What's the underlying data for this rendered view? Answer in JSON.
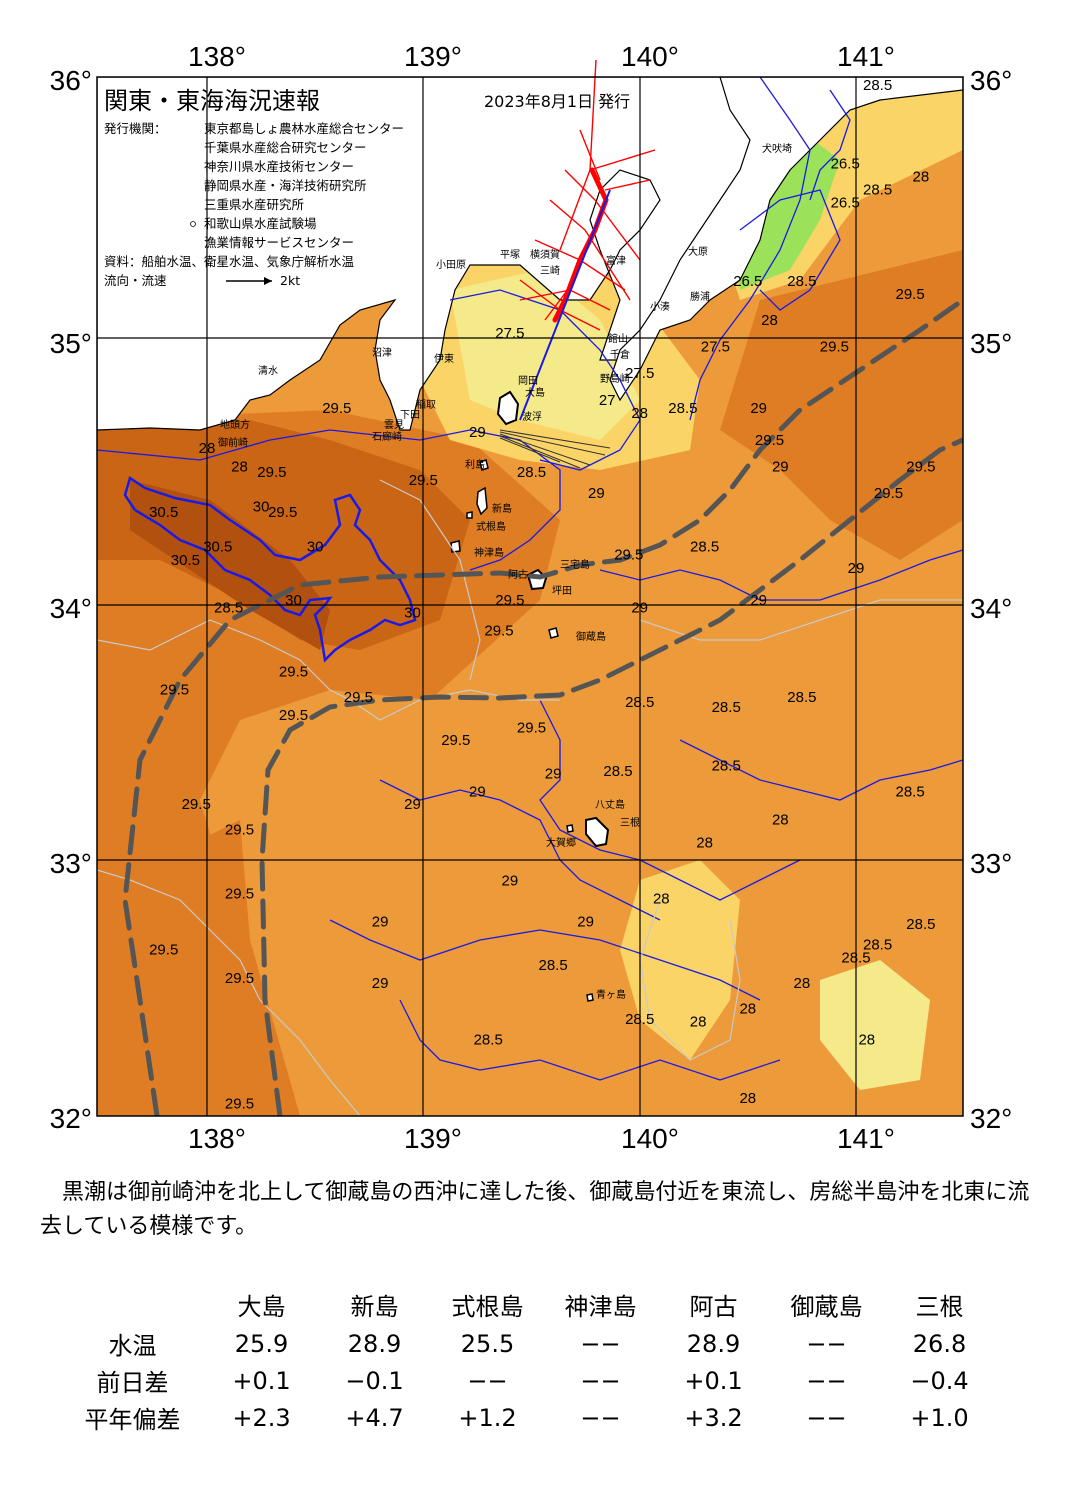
{
  "header": {
    "title": "関東・東海海況速報",
    "issue_date": "2023年8月1日 発行",
    "issuer_label": "発行機関：",
    "issuers": [
      "東京都島しょ農林水産総合センター",
      "千葉県水産総合研究センター",
      "神奈川県水産技術センター",
      "静岡県水産・海洋技術研究所",
      "三重県水産研究所",
      "和歌山県水産試験場",
      "漁業情報サービスセンター"
    ],
    "sources": "資料：船舶水温、衛星水温、気象庁解析水温",
    "legend_label": "流向・流速",
    "legend_value": "2kt"
  },
  "axes": {
    "lon": [
      "138°",
      "139°",
      "140°",
      "141°"
    ],
    "lat": [
      "36°",
      "35°",
      "34°",
      "33°",
      "32°"
    ]
  },
  "places": [
    "大島",
    "利島",
    "新島",
    "式根島",
    "神津島",
    "三宅島",
    "御蔵島",
    "八丈島",
    "青ヶ島",
    "三根",
    "大賀郷",
    "阿古",
    "坪田",
    "千倉",
    "野島崎",
    "館山",
    "富津",
    "横須賀",
    "三崎",
    "平塚",
    "小田原",
    "伊東",
    "稲取",
    "下田",
    "石廊崎",
    "雲見",
    "沼津",
    "清水",
    "御前崎",
    "地頭方",
    "勝浦",
    "大原",
    "犬吠埼",
    "小湊",
    "波浮",
    "岡田"
  ],
  "contour_labels": [
    {
      "t": "28.5",
      "lon": 141.1,
      "lat": 35.95
    },
    {
      "t": "28",
      "lon": 141.3,
      "lat": 35.6
    },
    {
      "t": "28.5",
      "lon": 141.1,
      "lat": 35.55
    },
    {
      "t": "26.5",
      "lon": 140.95,
      "lat": 35.65
    },
    {
      "t": "26.5",
      "lon": 140.95,
      "lat": 35.5
    },
    {
      "t": "28.5",
      "lon": 140.75,
      "lat": 35.2
    },
    {
      "t": "26.5",
      "lon": 140.5,
      "lat": 35.2
    },
    {
      "t": "28",
      "lon": 140.6,
      "lat": 35.05
    },
    {
      "t": "29.5",
      "lon": 141.25,
      "lat": 35.15
    },
    {
      "t": "29.5",
      "lon": 140.9,
      "lat": 34.95
    },
    {
      "t": "27.5",
      "lon": 140.35,
      "lat": 34.95
    },
    {
      "t": "27.5",
      "lon": 139.4,
      "lat": 35.0
    },
    {
      "t": "27.5",
      "lon": 140.0,
      "lat": 34.85
    },
    {
      "t": "27",
      "lon": 139.85,
      "lat": 34.75
    },
    {
      "t": "28",
      "lon": 140.0,
      "lat": 34.7
    },
    {
      "t": "28.5",
      "lon": 140.2,
      "lat": 34.72
    },
    {
      "t": "29",
      "lon": 140.55,
      "lat": 34.72
    },
    {
      "t": "29.5",
      "lon": 140.6,
      "lat": 34.6
    },
    {
      "t": "29",
      "lon": 140.65,
      "lat": 34.5
    },
    {
      "t": "29",
      "lon": 139.25,
      "lat": 34.63
    },
    {
      "t": "28.5",
      "lon": 139.5,
      "lat": 34.48
    },
    {
      "t": "29.5",
      "lon": 139.0,
      "lat": 34.45
    },
    {
      "t": "29.5",
      "lon": 138.6,
      "lat": 34.72
    },
    {
      "t": "28",
      "lon": 138.0,
      "lat": 34.57
    },
    {
      "t": "28",
      "lon": 138.15,
      "lat": 34.5
    },
    {
      "t": "29.5",
      "lon": 138.3,
      "lat": 34.48
    },
    {
      "t": "29.5",
      "lon": 138.35,
      "lat": 34.33
    },
    {
      "t": "30",
      "lon": 138.25,
      "lat": 34.35
    },
    {
      "t": "30",
      "lon": 138.5,
      "lat": 34.2
    },
    {
      "t": "30.5",
      "lon": 137.8,
      "lat": 34.33
    },
    {
      "t": "30.5",
      "lon": 138.05,
      "lat": 34.2
    },
    {
      "t": "30.5",
      "lon": 137.9,
      "lat": 34.15
    },
    {
      "t": "30",
      "lon": 138.4,
      "lat": 34.0
    },
    {
      "t": "30",
      "lon": 138.95,
      "lat": 33.95
    },
    {
      "t": "28.5",
      "lon": 138.1,
      "lat": 33.97
    },
    {
      "t": "29",
      "lon": 139.8,
      "lat": 34.4
    },
    {
      "t": "28.5",
      "lon": 140.3,
      "lat": 34.2
    },
    {
      "t": "29.5",
      "lon": 139.95,
      "lat": 34.17
    },
    {
      "t": "29.5",
      "lon": 141.3,
      "lat": 34.5
    },
    {
      "t": "29.5",
      "lon": 141.15,
      "lat": 34.4
    },
    {
      "t": "29",
      "lon": 141.0,
      "lat": 34.12
    },
    {
      "t": "29",
      "lon": 140.55,
      "lat": 34.0
    },
    {
      "t": "29.5",
      "lon": 139.4,
      "lat": 34.0
    },
    {
      "t": "29.5",
      "lon": 139.35,
      "lat": 33.88
    },
    {
      "t": "29",
      "lon": 140.0,
      "lat": 33.97
    },
    {
      "t": "29.5",
      "lon": 138.4,
      "lat": 33.72
    },
    {
      "t": "29.5",
      "lon": 137.85,
      "lat": 33.65
    },
    {
      "t": "29.5",
      "lon": 138.4,
      "lat": 33.55
    },
    {
      "t": "29.5",
      "lon": 138.7,
      "lat": 33.62
    },
    {
      "t": "29.5",
      "lon": 139.15,
      "lat": 33.45
    },
    {
      "t": "29.5",
      "lon": 139.5,
      "lat": 33.5
    },
    {
      "t": "28.5",
      "lon": 140.0,
      "lat": 33.6
    },
    {
      "t": "28.5",
      "lon": 140.4,
      "lat": 33.58
    },
    {
      "t": "28.5",
      "lon": 140.75,
      "lat": 33.62
    },
    {
      "t": "29",
      "lon": 139.6,
      "lat": 33.32
    },
    {
      "t": "28.5",
      "lon": 139.9,
      "lat": 33.33
    },
    {
      "t": "28.5",
      "lon": 140.4,
      "lat": 33.35
    },
    {
      "t": "29",
      "lon": 139.25,
      "lat": 33.25
    },
    {
      "t": "28.5",
      "lon": 141.25,
      "lat": 33.25
    },
    {
      "t": "29",
      "lon": 138.95,
      "lat": 33.2
    },
    {
      "t": "29.5",
      "lon": 137.95,
      "lat": 33.2
    },
    {
      "t": "29.5",
      "lon": 138.15,
      "lat": 33.1
    },
    {
      "t": "28",
      "lon": 140.65,
      "lat": 33.14
    },
    {
      "t": "28",
      "lon": 140.3,
      "lat": 33.05
    },
    {
      "t": "29",
      "lon": 139.4,
      "lat": 32.9
    },
    {
      "t": "29",
      "lon": 138.8,
      "lat": 32.74
    },
    {
      "t": "29",
      "lon": 139.75,
      "lat": 32.74
    },
    {
      "t": "28",
      "lon": 140.1,
      "lat": 32.83
    },
    {
      "t": "29.5",
      "lon": 138.15,
      "lat": 32.85
    },
    {
      "t": "29.5",
      "lon": 137.8,
      "lat": 32.63
    },
    {
      "t": "29.5",
      "lon": 138.15,
      "lat": 32.52
    },
    {
      "t": "28.5",
      "lon": 139.6,
      "lat": 32.57
    },
    {
      "t": "28.5",
      "lon": 141.3,
      "lat": 32.73
    },
    {
      "t": "28.5",
      "lon": 141.1,
      "lat": 32.65
    },
    {
      "t": "28.5",
      "lon": 141.0,
      "lat": 32.6
    },
    {
      "t": "29",
      "lon": 138.8,
      "lat": 32.5
    },
    {
      "t": "28",
      "lon": 140.75,
      "lat": 32.5
    },
    {
      "t": "28",
      "lon": 140.5,
      "lat": 32.4
    },
    {
      "t": "28",
      "lon": 140.27,
      "lat": 32.35
    },
    {
      "t": "28.5",
      "lon": 140.0,
      "lat": 32.36
    },
    {
      "t": "28.5",
      "lon": 139.3,
      "lat": 32.28
    },
    {
      "t": "28",
      "lon": 141.05,
      "lat": 32.28
    },
    {
      "t": "29.5",
      "lon": 138.15,
      "lat": 32.03
    },
    {
      "t": "28",
      "lon": 140.5,
      "lat": 32.05
    }
  ],
  "summary": "黒潮は御前崎沖を北上して御蔵島の西沖に達した後、御蔵島付近を東流し、房総半島沖を北東に流去している模様です。",
  "table": {
    "columns": [
      "大島",
      "新島",
      "式根島",
      "神津島",
      "阿古",
      "御蔵島",
      "三根"
    ],
    "rows": [
      {
        "label": "水温",
        "values": [
          "25.9",
          "28.9",
          "25.5",
          "−−",
          "28.9",
          "−−",
          "26.8"
        ]
      },
      {
        "label": "前日差",
        "values": [
          "+0.1",
          "−0.1",
          "−−",
          "−−",
          "+0.1",
          "−−",
          "−0.4"
        ]
      },
      {
        "label": "平年偏差",
        "values": [
          "+2.3",
          "+4.7",
          "+1.2",
          "−−",
          "+3.2",
          "−−",
          "+1.0"
        ]
      }
    ]
  },
  "colors": {
    "temp_26": "#9be15a",
    "temp_27": "#f5ea8a",
    "temp_28": "#fbd468",
    "temp_28_5": "#f3a543",
    "temp_29": "#ec9a3a",
    "temp_29_5": "#df7d24",
    "temp_30": "#c96515",
    "temp_30_5": "#b25010",
    "land": "#ffffff",
    "kuroshio_axis": "#555555",
    "current_vector": "#ff0000",
    "contour_blue": "#1a1ae6"
  }
}
